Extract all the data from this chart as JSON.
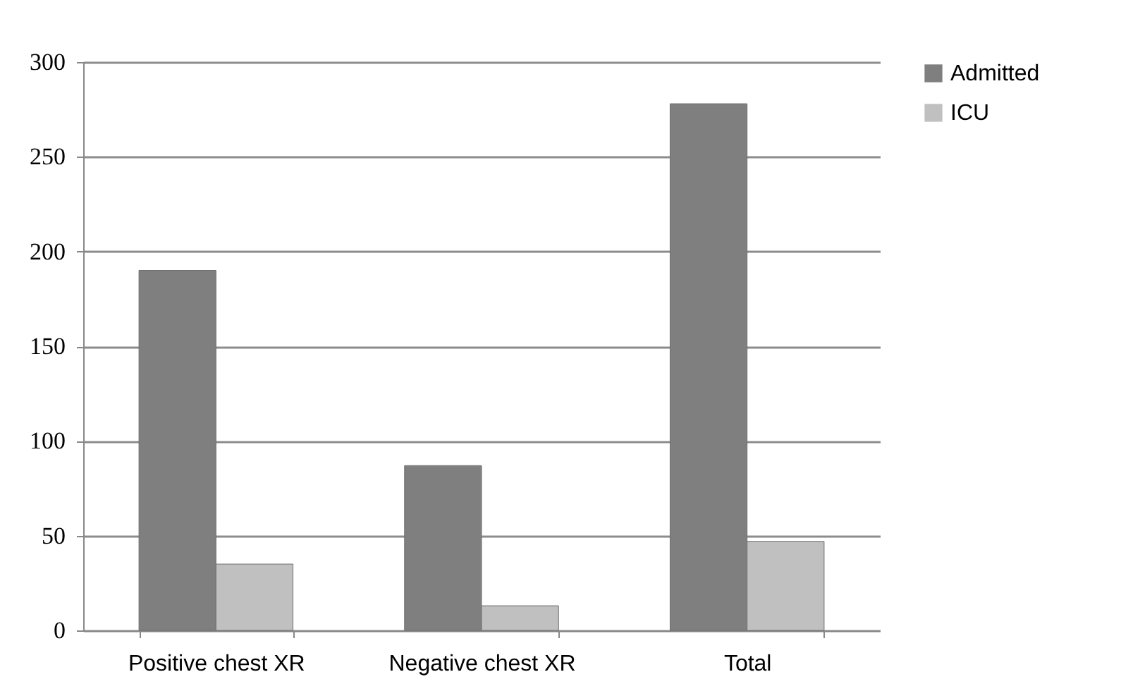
{
  "chart_data": {
    "type": "bar",
    "categories": [
      "Positive chest XR",
      "Negative chest XR",
      "Total"
    ],
    "series": [
      {
        "name": "Admitted",
        "color": "#7f7f7f",
        "values": [
          190,
          87,
          278
        ]
      },
      {
        "name": "ICU",
        "color": "#c0c0c0",
        "values": [
          35,
          13,
          47
        ]
      }
    ],
    "ylim": [
      0,
      300
    ],
    "yticks": [
      0,
      50,
      100,
      150,
      200,
      250,
      300
    ],
    "grid": "y",
    "legend": "right"
  }
}
